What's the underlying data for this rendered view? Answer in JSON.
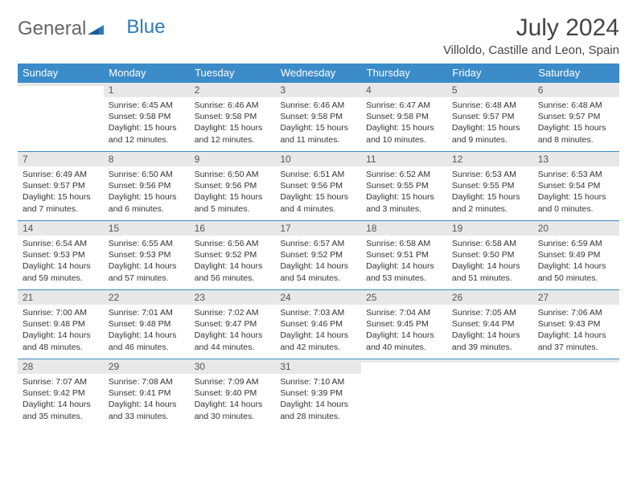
{
  "logo": {
    "word1": "General",
    "word2": "Blue"
  },
  "title": "July 2024",
  "location": "Villoldo, Castille and Leon, Spain",
  "colors": {
    "header_bg": "#3b8bc9",
    "header_text": "#ffffff",
    "daynum_bg": "#e8e8e8",
    "border": "#3b8bc9",
    "logo_accent": "#2b7bbf",
    "text": "#333333",
    "background": "#ffffff"
  },
  "typography": {
    "title_fontsize": 30,
    "location_fontsize": 15,
    "dayheader_fontsize": 13,
    "daynum_fontsize": 12,
    "daytext_fontsize": 10.5
  },
  "day_headers": [
    "Sunday",
    "Monday",
    "Tuesday",
    "Wednesday",
    "Thursday",
    "Friday",
    "Saturday"
  ],
  "weeks": [
    [
      {
        "num": "",
        "sunrise": "",
        "sunset": "",
        "daylight": ""
      },
      {
        "num": "1",
        "sunrise": "Sunrise: 6:45 AM",
        "sunset": "Sunset: 9:58 PM",
        "daylight": "Daylight: 15 hours and 12 minutes."
      },
      {
        "num": "2",
        "sunrise": "Sunrise: 6:46 AM",
        "sunset": "Sunset: 9:58 PM",
        "daylight": "Daylight: 15 hours and 12 minutes."
      },
      {
        "num": "3",
        "sunrise": "Sunrise: 6:46 AM",
        "sunset": "Sunset: 9:58 PM",
        "daylight": "Daylight: 15 hours and 11 minutes."
      },
      {
        "num": "4",
        "sunrise": "Sunrise: 6:47 AM",
        "sunset": "Sunset: 9:58 PM",
        "daylight": "Daylight: 15 hours and 10 minutes."
      },
      {
        "num": "5",
        "sunrise": "Sunrise: 6:48 AM",
        "sunset": "Sunset: 9:57 PM",
        "daylight": "Daylight: 15 hours and 9 minutes."
      },
      {
        "num": "6",
        "sunrise": "Sunrise: 6:48 AM",
        "sunset": "Sunset: 9:57 PM",
        "daylight": "Daylight: 15 hours and 8 minutes."
      }
    ],
    [
      {
        "num": "7",
        "sunrise": "Sunrise: 6:49 AM",
        "sunset": "Sunset: 9:57 PM",
        "daylight": "Daylight: 15 hours and 7 minutes."
      },
      {
        "num": "8",
        "sunrise": "Sunrise: 6:50 AM",
        "sunset": "Sunset: 9:56 PM",
        "daylight": "Daylight: 15 hours and 6 minutes."
      },
      {
        "num": "9",
        "sunrise": "Sunrise: 6:50 AM",
        "sunset": "Sunset: 9:56 PM",
        "daylight": "Daylight: 15 hours and 5 minutes."
      },
      {
        "num": "10",
        "sunrise": "Sunrise: 6:51 AM",
        "sunset": "Sunset: 9:56 PM",
        "daylight": "Daylight: 15 hours and 4 minutes."
      },
      {
        "num": "11",
        "sunrise": "Sunrise: 6:52 AM",
        "sunset": "Sunset: 9:55 PM",
        "daylight": "Daylight: 15 hours and 3 minutes."
      },
      {
        "num": "12",
        "sunrise": "Sunrise: 6:53 AM",
        "sunset": "Sunset: 9:55 PM",
        "daylight": "Daylight: 15 hours and 2 minutes."
      },
      {
        "num": "13",
        "sunrise": "Sunrise: 6:53 AM",
        "sunset": "Sunset: 9:54 PM",
        "daylight": "Daylight: 15 hours and 0 minutes."
      }
    ],
    [
      {
        "num": "14",
        "sunrise": "Sunrise: 6:54 AM",
        "sunset": "Sunset: 9:53 PM",
        "daylight": "Daylight: 14 hours and 59 minutes."
      },
      {
        "num": "15",
        "sunrise": "Sunrise: 6:55 AM",
        "sunset": "Sunset: 9:53 PM",
        "daylight": "Daylight: 14 hours and 57 minutes."
      },
      {
        "num": "16",
        "sunrise": "Sunrise: 6:56 AM",
        "sunset": "Sunset: 9:52 PM",
        "daylight": "Daylight: 14 hours and 56 minutes."
      },
      {
        "num": "17",
        "sunrise": "Sunrise: 6:57 AM",
        "sunset": "Sunset: 9:52 PM",
        "daylight": "Daylight: 14 hours and 54 minutes."
      },
      {
        "num": "18",
        "sunrise": "Sunrise: 6:58 AM",
        "sunset": "Sunset: 9:51 PM",
        "daylight": "Daylight: 14 hours and 53 minutes."
      },
      {
        "num": "19",
        "sunrise": "Sunrise: 6:58 AM",
        "sunset": "Sunset: 9:50 PM",
        "daylight": "Daylight: 14 hours and 51 minutes."
      },
      {
        "num": "20",
        "sunrise": "Sunrise: 6:59 AM",
        "sunset": "Sunset: 9:49 PM",
        "daylight": "Daylight: 14 hours and 50 minutes."
      }
    ],
    [
      {
        "num": "21",
        "sunrise": "Sunrise: 7:00 AM",
        "sunset": "Sunset: 9:48 PM",
        "daylight": "Daylight: 14 hours and 48 minutes."
      },
      {
        "num": "22",
        "sunrise": "Sunrise: 7:01 AM",
        "sunset": "Sunset: 9:48 PM",
        "daylight": "Daylight: 14 hours and 46 minutes."
      },
      {
        "num": "23",
        "sunrise": "Sunrise: 7:02 AM",
        "sunset": "Sunset: 9:47 PM",
        "daylight": "Daylight: 14 hours and 44 minutes."
      },
      {
        "num": "24",
        "sunrise": "Sunrise: 7:03 AM",
        "sunset": "Sunset: 9:46 PM",
        "daylight": "Daylight: 14 hours and 42 minutes."
      },
      {
        "num": "25",
        "sunrise": "Sunrise: 7:04 AM",
        "sunset": "Sunset: 9:45 PM",
        "daylight": "Daylight: 14 hours and 40 minutes."
      },
      {
        "num": "26",
        "sunrise": "Sunrise: 7:05 AM",
        "sunset": "Sunset: 9:44 PM",
        "daylight": "Daylight: 14 hours and 39 minutes."
      },
      {
        "num": "27",
        "sunrise": "Sunrise: 7:06 AM",
        "sunset": "Sunset: 9:43 PM",
        "daylight": "Daylight: 14 hours and 37 minutes."
      }
    ],
    [
      {
        "num": "28",
        "sunrise": "Sunrise: 7:07 AM",
        "sunset": "Sunset: 9:42 PM",
        "daylight": "Daylight: 14 hours and 35 minutes."
      },
      {
        "num": "29",
        "sunrise": "Sunrise: 7:08 AM",
        "sunset": "Sunset: 9:41 PM",
        "daylight": "Daylight: 14 hours and 33 minutes."
      },
      {
        "num": "30",
        "sunrise": "Sunrise: 7:09 AM",
        "sunset": "Sunset: 9:40 PM",
        "daylight": "Daylight: 14 hours and 30 minutes."
      },
      {
        "num": "31",
        "sunrise": "Sunrise: 7:10 AM",
        "sunset": "Sunset: 9:39 PM",
        "daylight": "Daylight: 14 hours and 28 minutes."
      },
      {
        "num": "",
        "sunrise": "",
        "sunset": "",
        "daylight": ""
      },
      {
        "num": "",
        "sunrise": "",
        "sunset": "",
        "daylight": ""
      },
      {
        "num": "",
        "sunrise": "",
        "sunset": "",
        "daylight": ""
      }
    ]
  ]
}
